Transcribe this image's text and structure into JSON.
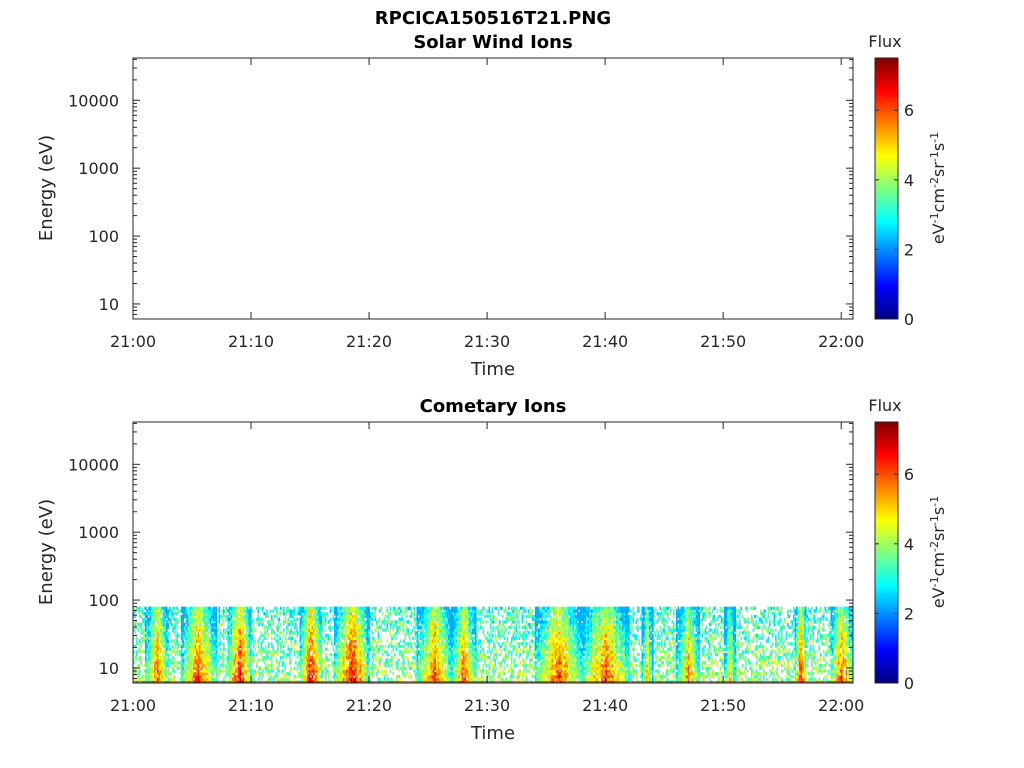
{
  "figure_title": "RPCICA150516T21.PNG",
  "chart_data": [
    {
      "type": "heatmap",
      "title": "Solar Wind Ions",
      "xlabel": "Time",
      "ylabel": "Energy (eV)",
      "x_ticks": [
        "21:00",
        "21:10",
        "21:20",
        "21:30",
        "21:40",
        "21:50",
        "22:00"
      ],
      "xlim": [
        "21:00",
        "22:01"
      ],
      "y_scale": "log",
      "y_ticks": [
        "10",
        "100",
        "1000",
        "10000"
      ],
      "ylim": [
        6,
        42000
      ],
      "colorbar": {
        "label": "Flux",
        "unit": "eV-1cm-2sr-1s-1",
        "ticks": [
          "0",
          "2",
          "4",
          "6"
        ],
        "range": [
          0,
          7.5
        ],
        "colormap": "jet"
      },
      "data": []
    },
    {
      "type": "heatmap",
      "title": "Cometary Ions",
      "xlabel": "Time",
      "ylabel": "Energy (eV)",
      "x_ticks": [
        "21:00",
        "21:10",
        "21:20",
        "21:30",
        "21:40",
        "21:50",
        "22:00"
      ],
      "xlim": [
        "21:00",
        "22:01"
      ],
      "y_scale": "log",
      "y_ticks": [
        "10",
        "100",
        "1000",
        "10000"
      ],
      "ylim": [
        6,
        42000
      ],
      "colorbar": {
        "label": "Flux",
        "unit": "eV-1cm-2sr-1s-1",
        "ticks": [
          "0",
          "2",
          "4",
          "6"
        ],
        "range": [
          0,
          7.5
        ],
        "colormap": "jet"
      },
      "energy_range_observed": [
        6,
        80
      ],
      "intense_bursts": [
        {
          "start": "21:01",
          "end": "21:03",
          "peak_flux": 6.5
        },
        {
          "start": "21:04",
          "end": "21:07",
          "peak_flux": 6.5
        },
        {
          "start": "21:08",
          "end": "21:10",
          "peak_flux": 7.0
        },
        {
          "start": "21:14",
          "end": "21:16",
          "peak_flux": 7.0
        },
        {
          "start": "21:17",
          "end": "21:20",
          "peak_flux": 7.0
        },
        {
          "start": "21:24",
          "end": "21:27",
          "peak_flux": 6.5
        },
        {
          "start": "21:27",
          "end": "21:29",
          "peak_flux": 6.5
        },
        {
          "start": "21:34",
          "end": "21:38",
          "peak_flux": 6.5
        },
        {
          "start": "21:38",
          "end": "21:42",
          "peak_flux": 6.5
        },
        {
          "start": "21:43",
          "end": "21:44",
          "peak_flux": 5.5
        },
        {
          "start": "21:46",
          "end": "21:48",
          "peak_flux": 6.0
        },
        {
          "start": "21:50",
          "end": "21:51",
          "peak_flux": 5.5
        },
        {
          "start": "21:56",
          "end": "21:57",
          "peak_flux": 7.0
        },
        {
          "start": "21:59",
          "end": "22:01",
          "peak_flux": 6.5
        }
      ]
    }
  ]
}
